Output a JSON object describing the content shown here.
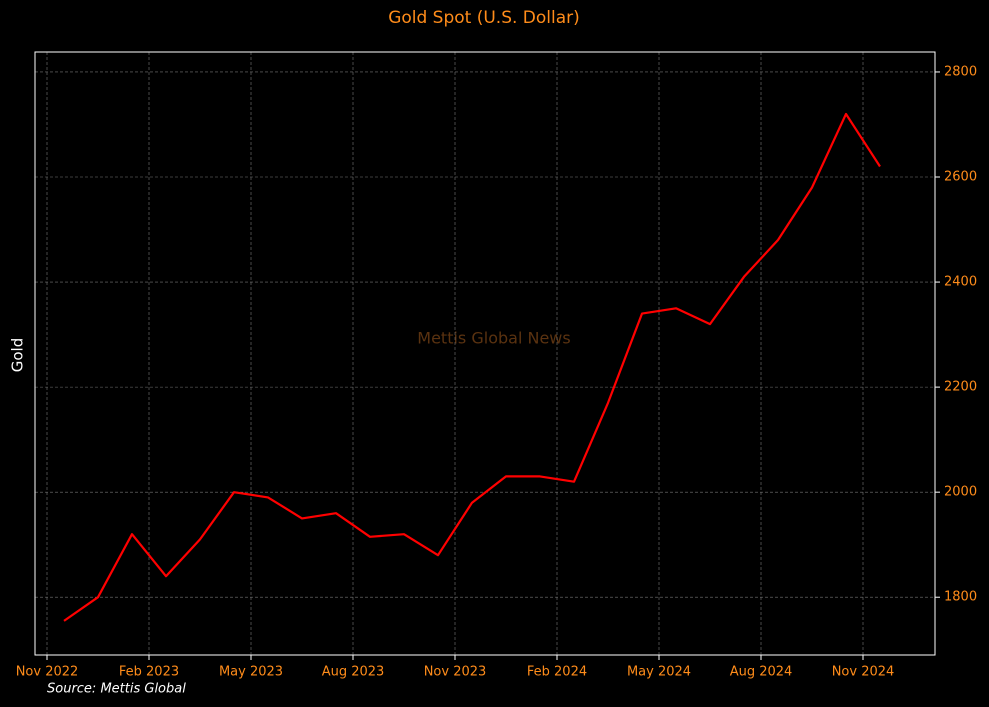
{
  "chart_data": {
    "type": "line",
    "title": "Gold Spot (U.S. Dollar)",
    "y_label": "Gold",
    "watermark": "Mettis Global News",
    "source": "Source: Mettis Global",
    "x": [
      "2022-11",
      "2022-12",
      "2023-01",
      "2023-02",
      "2023-03",
      "2023-04",
      "2023-05",
      "2023-06",
      "2023-07",
      "2023-08",
      "2023-09",
      "2023-10",
      "2023-11",
      "2023-12",
      "2024-01",
      "2024-02",
      "2024-03",
      "2024-04",
      "2024-05",
      "2024-06",
      "2024-07",
      "2024-08",
      "2024-09",
      "2024-10",
      "2024-11"
    ],
    "series": [
      {
        "name": "Gold",
        "color": "#ff0000",
        "values": [
          1755,
          1800,
          1920,
          1840,
          1910,
          2000,
          1990,
          1950,
          1960,
          1915,
          1920,
          1880,
          1980,
          2030,
          2030,
          2020,
          2170,
          2340,
          2350,
          2320,
          2410,
          2480,
          2580,
          2720,
          2620
        ]
      }
    ],
    "xticks": [
      {
        "value": "2022-11",
        "label": "Nov 2022"
      },
      {
        "value": "2023-02",
        "label": "Feb 2023"
      },
      {
        "value": "2023-05",
        "label": "May 2023"
      },
      {
        "value": "2023-08",
        "label": "Aug 2023"
      },
      {
        "value": "2023-11",
        "label": "Nov 2023"
      },
      {
        "value": "2024-02",
        "label": "Feb 2024"
      },
      {
        "value": "2024-05",
        "label": "May 2024"
      },
      {
        "value": "2024-08",
        "label": "Aug 2024"
      },
      {
        "value": "2024-11",
        "label": "Nov 2024"
      }
    ],
    "ylim": [
      1690,
      2838
    ],
    "yticks": [
      1800,
      2000,
      2200,
      2400,
      2600,
      2800
    ],
    "y_axis_side": "right",
    "grid": true
  }
}
